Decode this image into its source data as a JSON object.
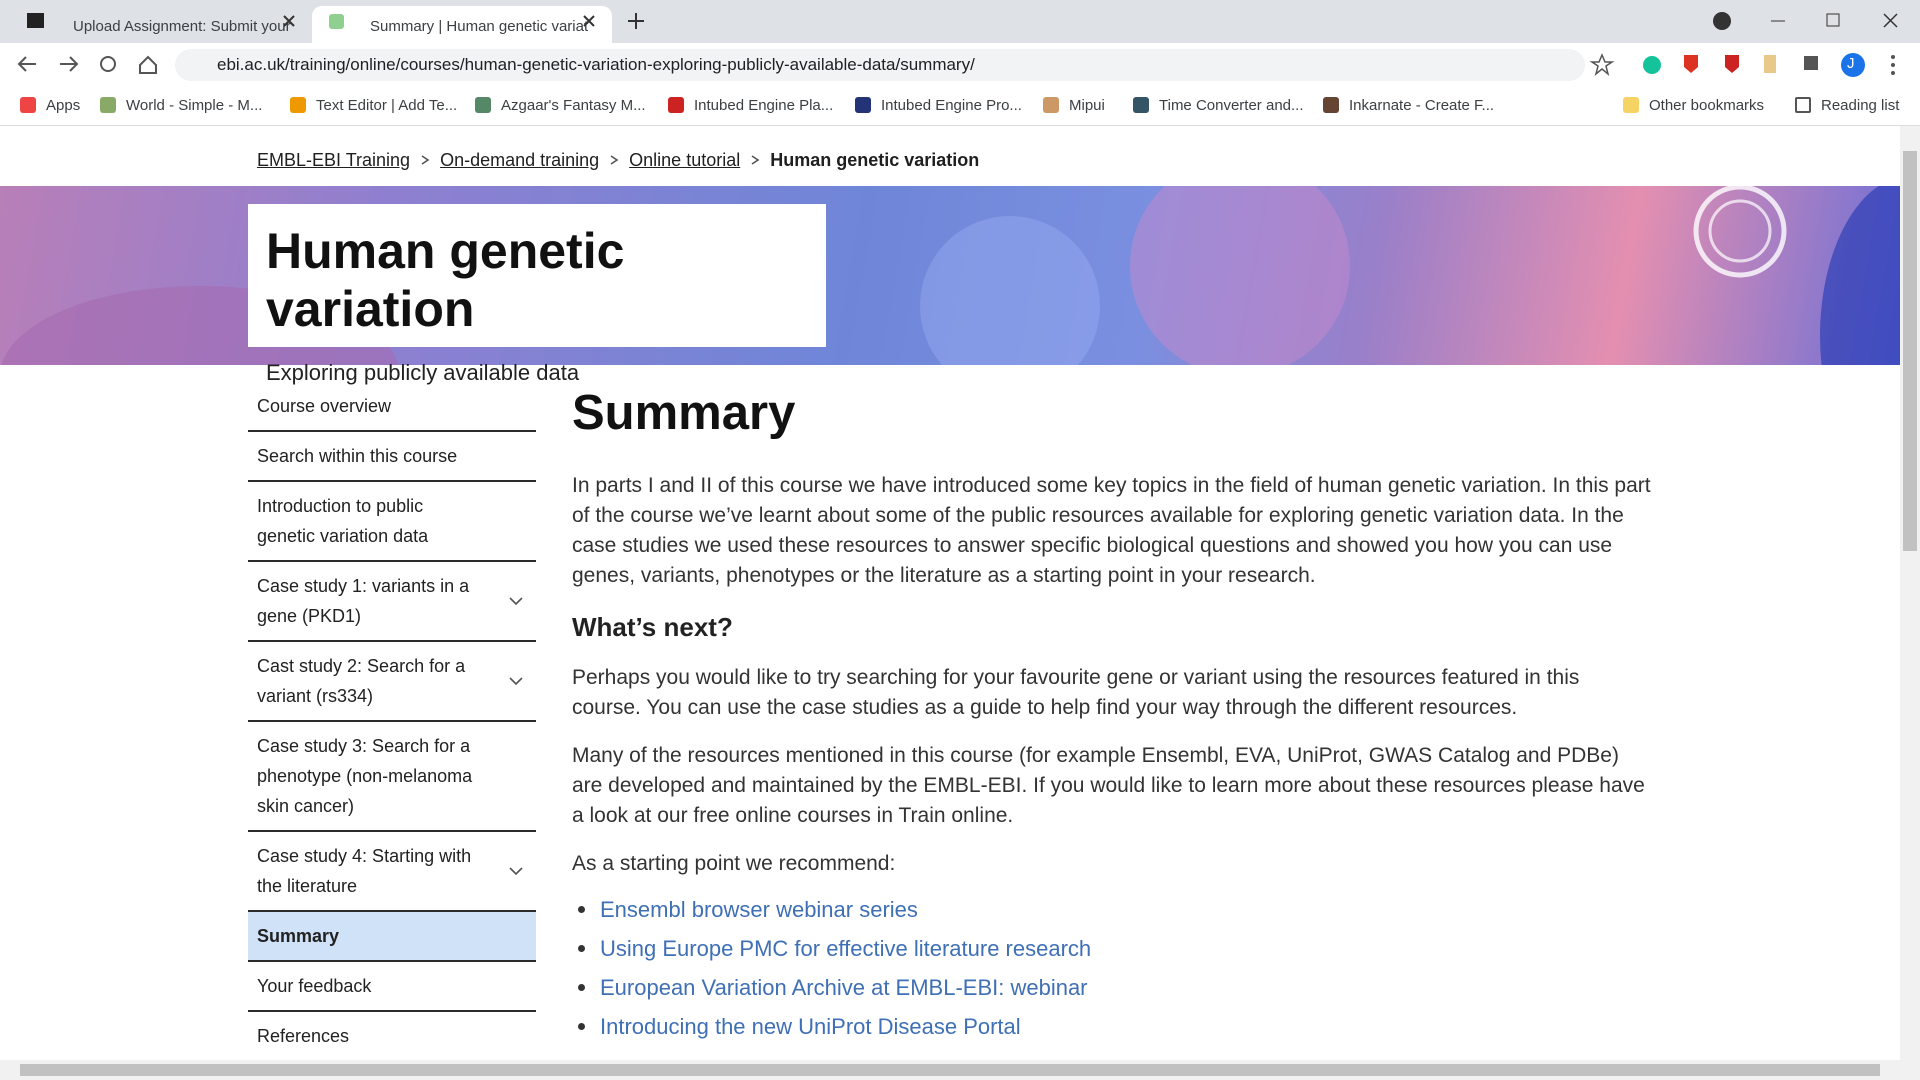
{
  "browser": {
    "tabs": [
      "Upload Assignment: Submit your",
      "Summary | Human genetic variat"
    ],
    "url": "ebi.ac.uk/training/online/courses/human-genetic-variation-exploring-publicly-available-data/summary/",
    "bookmarks": [
      "Apps",
      "World - Simple - M...",
      "Text Editor | Add Te...",
      "Azgaar's Fantasy M...",
      "Intubed Engine Pla...",
      "Intubed Engine Pro...",
      "Mipui",
      "Time Converter and...",
      "Inkarnate - Create F..."
    ],
    "other_bookmarks": "Other bookmarks",
    "reading_list": "Reading list",
    "profile": "J"
  },
  "breadcrumb": [
    "EMBL-EBI Training",
    "On-demand training",
    "Online tutorial",
    "Human genetic variation"
  ],
  "hero": {
    "title": "Human genetic variation",
    "subtitle": "Exploring publicly available data"
  },
  "sidebar": [
    {
      "label": "Course overview",
      "expandable": false,
      "active": false
    },
    {
      "label": "Search within this course",
      "expandable": false,
      "active": false
    },
    {
      "label": "Introduction to public genetic variation data",
      "expandable": false,
      "active": false
    },
    {
      "label": "Case study 1: variants in a gene (PKD1)",
      "expandable": true,
      "active": false
    },
    {
      "label": "Cast study 2: Search for a variant (rs334)",
      "expandable": true,
      "active": false
    },
    {
      "label": "Case study 3: Search for a phenotype (non-melanoma skin cancer)",
      "expandable": false,
      "active": false
    },
    {
      "label": "Case study 4: Starting with the literature",
      "expandable": true,
      "active": false
    },
    {
      "label": "Summary",
      "expandable": false,
      "active": true
    },
    {
      "label": "Your feedback",
      "expandable": false,
      "active": false
    },
    {
      "label": "References",
      "expandable": false,
      "active": false
    }
  ],
  "main": {
    "heading": "Summary",
    "intro": "In parts I and II of this course we have introduced some key topics in the field of human genetic variation. In this part of the course we’ve learnt about some of the public resources available for exploring genetic variation data. In the case studies we used these resources to answer specific biological questions and showed you how you can use genes, variants, phenotypes or the literature as a starting point in your research.",
    "subheading": "What’s next?",
    "paragraphs": [
      "Perhaps you would like to try searching for your favourite gene or variant using the resources featured in this course. You can use the case studies as a guide to help find your way through the different resources.",
      "Many of the resources mentioned in this course (for example Ensembl, EVA, UniProt, GWAS Catalog and PDBe) are developed and maintained by the EMBL-EBI. If you would like to learn more about these resources please have a look at our free online courses in Train online."
    ],
    "recommend": "As a starting point we recommend:",
    "links": [
      "Ensembl browser webinar series",
      "Using Europe PMC for effective literature research",
      "European Variation Archive at EMBL-EBI: webinar",
      "Introducing the new UniProt Disease Portal"
    ]
  }
}
